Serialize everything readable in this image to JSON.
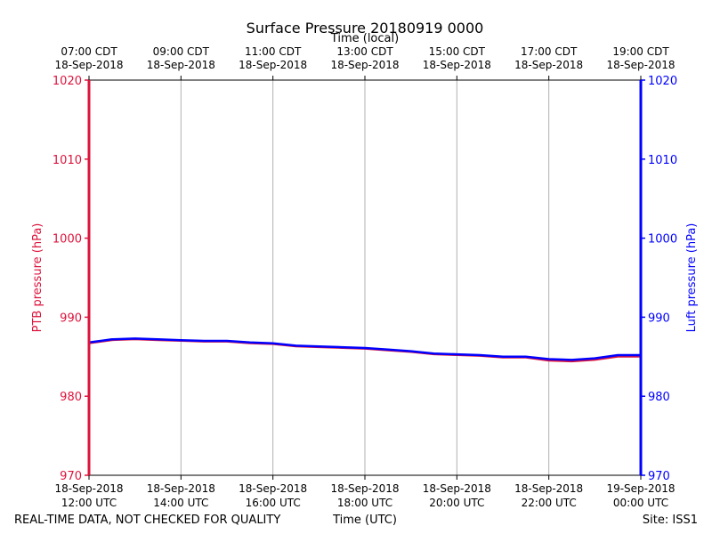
{
  "chart_data": {
    "type": "line",
    "title": "Surface Pressure 20180919 0000",
    "top_axis_label": "Time (local)",
    "xlabel": "Time (UTC)",
    "ylabel_left": "PTB pressure (hPa)",
    "ylabel_right": "Luft pressure (hPa)",
    "ylim": [
      970,
      1020
    ],
    "yticks": [
      970,
      980,
      990,
      1000,
      1010,
      1020
    ],
    "x_range_utc_hours": [
      12,
      24
    ],
    "grid": "vertical",
    "bottom_ticks": [
      {
        "date": "18-Sep-2018",
        "time": "12:00 UTC"
      },
      {
        "date": "18-Sep-2018",
        "time": "14:00 UTC"
      },
      {
        "date": "18-Sep-2018",
        "time": "16:00 UTC"
      },
      {
        "date": "18-Sep-2018",
        "time": "18:00 UTC"
      },
      {
        "date": "18-Sep-2018",
        "time": "20:00 UTC"
      },
      {
        "date": "18-Sep-2018",
        "time": "22:00 UTC"
      },
      {
        "date": "19-Sep-2018",
        "time": "00:00 UTC"
      }
    ],
    "top_ticks": [
      {
        "time": "07:00 CDT",
        "date": "18-Sep-2018"
      },
      {
        "time": "09:00 CDT",
        "date": "18-Sep-2018"
      },
      {
        "time": "11:00 CDT",
        "date": "18-Sep-2018"
      },
      {
        "time": "13:00 CDT",
        "date": "18-Sep-2018"
      },
      {
        "time": "15:00 CDT",
        "date": "18-Sep-2018"
      },
      {
        "time": "17:00 CDT",
        "date": "18-Sep-2018"
      },
      {
        "time": "19:00 CDT",
        "date": "18-Sep-2018"
      }
    ],
    "x": [
      "2018-09-18 12:00",
      "2018-09-18 12:30",
      "2018-09-18 13:00",
      "2018-09-18 13:30",
      "2018-09-18 14:00",
      "2018-09-18 14:30",
      "2018-09-18 15:00",
      "2018-09-18 15:30",
      "2018-09-18 16:00",
      "2018-09-18 16:30",
      "2018-09-18 17:00",
      "2018-09-18 17:30",
      "2018-09-18 18:00",
      "2018-09-18 18:30",
      "2018-09-18 19:00",
      "2018-09-18 19:30",
      "2018-09-18 20:00",
      "2018-09-18 20:30",
      "2018-09-18 21:00",
      "2018-09-18 21:30",
      "2018-09-18 22:00",
      "2018-09-18 22:30",
      "2018-09-18 23:00",
      "2018-09-18 23:30",
      "2018-09-19 00:00"
    ],
    "series": [
      {
        "name": "PTB pressure (hPa)",
        "color": "#dc143c",
        "values": [
          986.7,
          987.1,
          987.2,
          987.1,
          987.0,
          986.9,
          986.9,
          986.7,
          986.6,
          986.3,
          986.2,
          986.1,
          986.0,
          985.8,
          985.6,
          985.3,
          985.2,
          985.1,
          984.9,
          984.9,
          984.5,
          984.4,
          984.6,
          985.0,
          985.0
        ]
      },
      {
        "name": "Luft pressure (hPa)",
        "color": "#0000ff",
        "values": [
          986.8,
          987.2,
          987.3,
          987.2,
          987.1,
          987.0,
          987.0,
          986.8,
          986.7,
          986.4,
          986.3,
          986.2,
          986.1,
          985.9,
          985.7,
          985.4,
          985.3,
          985.2,
          985.0,
          985.0,
          984.7,
          984.6,
          984.8,
          985.2,
          985.2
        ]
      }
    ]
  },
  "footer": {
    "quality_note": "REAL-TIME DATA, NOT CHECKED FOR QUALITY",
    "x_label": "Time (UTC)",
    "site": "Site: ISS1"
  },
  "colors": {
    "left_axis": "#dc143c",
    "right_axis": "#0000ff",
    "grid": "#b0b0b0"
  }
}
